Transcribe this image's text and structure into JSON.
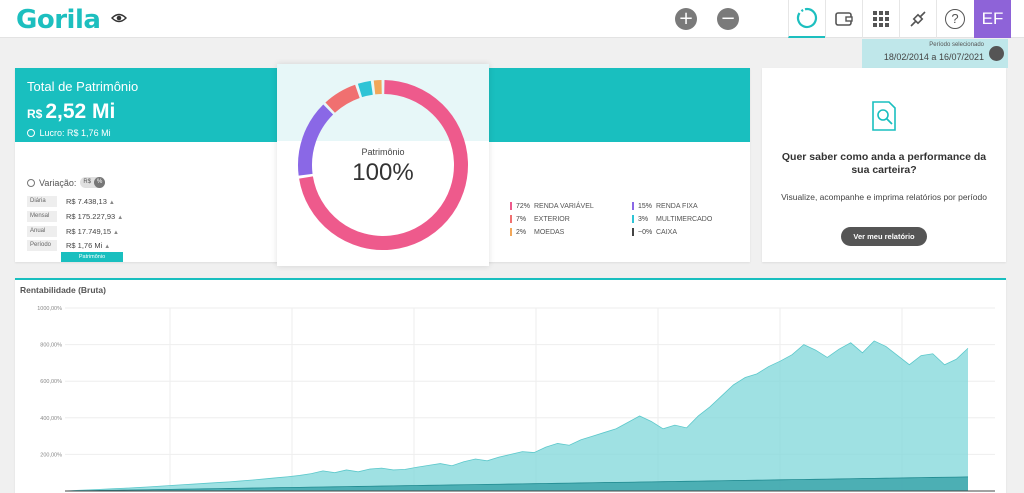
{
  "app": {
    "logo": "Gorila",
    "avatar_initials": "EF",
    "zoom_in": "+",
    "zoom_out": "−",
    "help": "?"
  },
  "period": {
    "label": "Período selecionado",
    "value": "18/02/2014 a 16/07/2021"
  },
  "patrimonio": {
    "title": "Total de Patrimônio",
    "currency": "R$",
    "value": "2,52 Mi",
    "lucro_label": "Lucro:",
    "lucro_value": "R$ 1,76 Mi",
    "variacao_label": "Variação:",
    "toggle_rs": "R$",
    "toggle_pct": "%",
    "rows": [
      {
        "label": "Diária",
        "value": "R$ 7.438,13"
      },
      {
        "label": "Mensal",
        "value": "R$ 175.227,93"
      },
      {
        "label": "Anual",
        "value": "R$ 17.749,15"
      },
      {
        "label": "Período",
        "value": "R$ 1,76 Mi"
      }
    ],
    "tab": "Patrimônio",
    "up_arrow": "▲"
  },
  "donut": {
    "label": "Patrimônio",
    "percent": "100%",
    "segments": [
      {
        "name": "RENDA VARIÁVEL",
        "pct": "72%",
        "value": 72,
        "color": "#ee5a8c"
      },
      {
        "name": "RENDA FIXA",
        "pct": "15%",
        "value": 15,
        "color": "#8a68e6"
      },
      {
        "name": "EXTERIOR",
        "pct": "7%",
        "value": 7,
        "color": "#f07070"
      },
      {
        "name": "MULTIMERCADO",
        "pct": "3%",
        "value": 3,
        "color": "#2ec4d6"
      },
      {
        "name": "MOEDAS",
        "pct": "2%",
        "value": 2,
        "color": "#f2a75a"
      },
      {
        "name": "CAIXA",
        "pct": "~0%",
        "value": 0,
        "color": "#444444"
      }
    ]
  },
  "relatorio": {
    "title": "Quer saber como anda a performance da sua carteira?",
    "text": "Visualize, acompanhe e imprima relatórios por período",
    "button": "Ver meu relatório"
  },
  "chart_data": {
    "type": "area",
    "title": "Rentabilidade (Bruta)",
    "yticks": [
      "1000,00%",
      "800,00%",
      "600,00%",
      "400,00%",
      "200,00%"
    ],
    "ylim": [
      0,
      1000
    ],
    "grid": true,
    "series": [
      {
        "color": "#7fd7d9",
        "values": [
          0,
          3,
          6,
          9,
          12,
          15,
          18,
          22,
          26,
          30,
          34,
          38,
          42,
          46,
          50,
          55,
          60,
          66,
          72,
          78,
          85,
          95,
          110,
          100,
          115,
          105,
          120,
          125,
          115,
          118,
          130,
          140,
          150,
          138,
          160,
          175,
          165,
          185,
          200,
          215,
          210,
          240,
          260,
          250,
          280,
          300,
          320,
          340,
          375,
          410,
          380,
          340,
          360,
          345,
          410,
          460,
          520,
          580,
          620,
          640,
          680,
          710,
          745,
          800,
          770,
          730,
          775,
          810,
          755,
          820,
          790,
          740,
          690,
          740,
          750,
          690,
          720,
          780
        ]
      },
      {
        "color": "#2a9aa0",
        "values": [
          0,
          1,
          2,
          3,
          4,
          5,
          6,
          7,
          8,
          9,
          10,
          11,
          12,
          13,
          14,
          15,
          16,
          17,
          18,
          19,
          20,
          21,
          22,
          23,
          24,
          25,
          26,
          27,
          28,
          29,
          30,
          31,
          32,
          33,
          34,
          35,
          36,
          37,
          38,
          39,
          40,
          41,
          42,
          43,
          44,
          45,
          46,
          47,
          48,
          49,
          50,
          51,
          52,
          53,
          54,
          55,
          56,
          57,
          58,
          59,
          60,
          61,
          62,
          63,
          64,
          65,
          66,
          67,
          68,
          69,
          70,
          71,
          72,
          73,
          74,
          75,
          76,
          77
        ]
      }
    ]
  }
}
